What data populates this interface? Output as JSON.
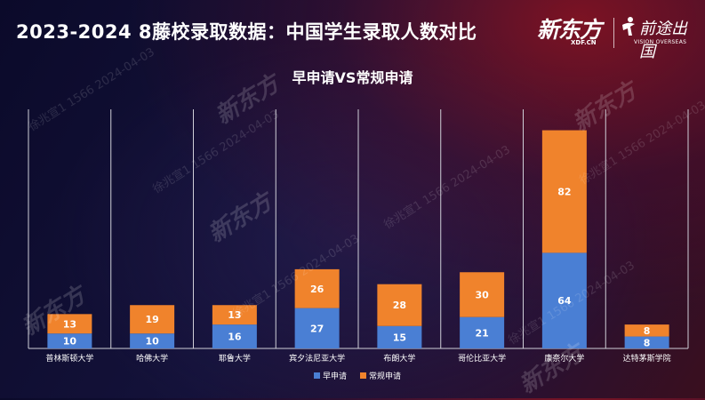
{
  "header": {
    "title": "2023-2024 8藤校录取数据：中国学生录取人数对比",
    "logo_xdf_cn": "新东方",
    "logo_xdf_en": "XDF.CN",
    "logo_vision_cn": "前途出国",
    "logo_vision_en": "VISION OVERSEAS"
  },
  "watermark": {
    "text": "徐兆宣1 1566 2024-04-03",
    "logo_text": "新东方"
  },
  "colors": {
    "early": "#4a7fd4",
    "regular": "#f0832c",
    "grid": "#cfcfd8"
  },
  "chart_data": {
    "type": "bar",
    "stacked": true,
    "title": "早申请VS常规申请",
    "categories": [
      "普林斯顿大学",
      "哈佛大学",
      "耶鲁大学",
      "宾夕法尼亚大学",
      "布朗大学",
      "哥伦比亚大学",
      "康奈尔大学",
      "达特茅斯学院"
    ],
    "series": [
      {
        "name": "早申请",
        "values": [
          10,
          10,
          16,
          27,
          15,
          21,
          64,
          8
        ]
      },
      {
        "name": "常规申请",
        "values": [
          13,
          19,
          13,
          26,
          28,
          30,
          82,
          8
        ]
      }
    ],
    "ylim": [
      0,
      160
    ],
    "legend_position": "bottom-center"
  }
}
